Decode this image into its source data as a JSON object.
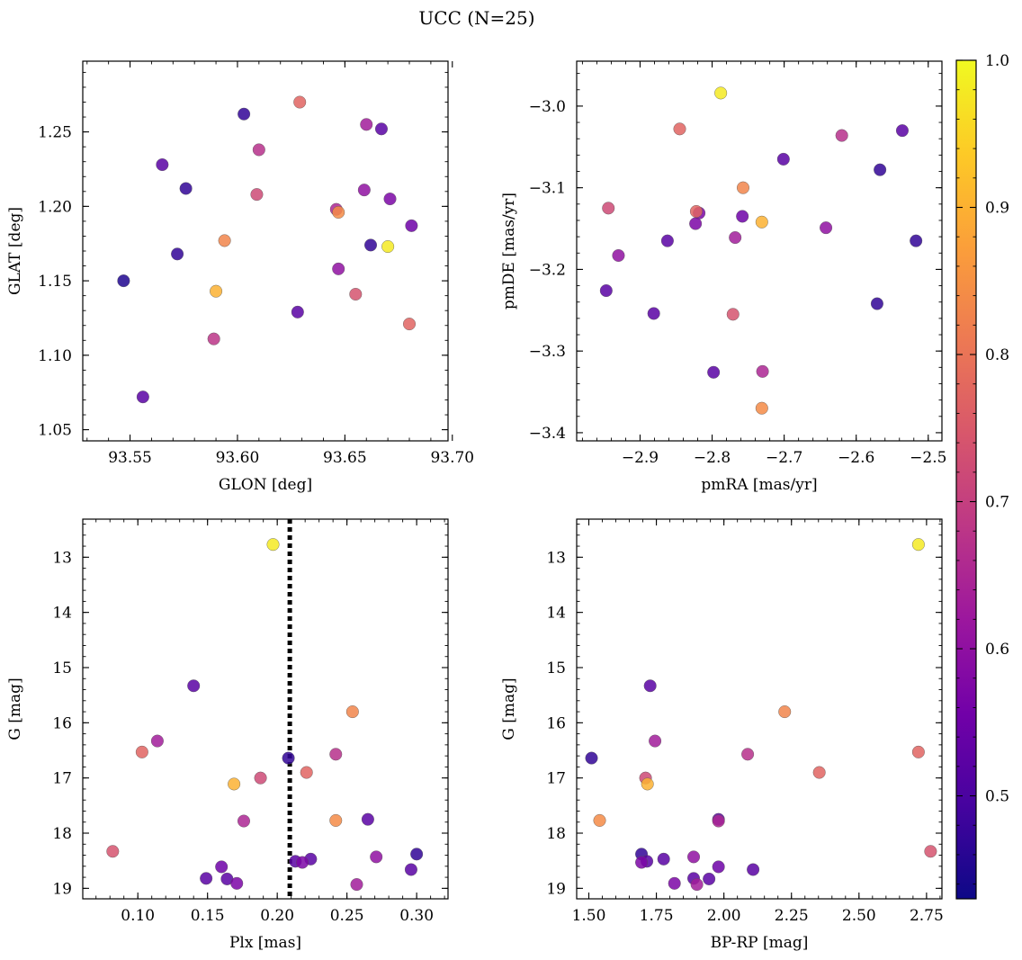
{
  "figure_title": "UCC (N=25)",
  "colorbar": {
    "min": 0.43,
    "max": 1.0,
    "ticks": [
      0.5,
      0.6,
      0.7,
      0.8,
      0.9,
      1.0
    ],
    "tick_labels": [
      "0.5",
      "0.6",
      "0.7",
      "0.8",
      "0.9",
      "1.0"
    ],
    "colormap": "plasma",
    "colormap_stops": [
      "#0d0887",
      "#46039f",
      "#7201a8",
      "#9c179e",
      "#bd3786",
      "#d8576b",
      "#ed7953",
      "#fb9f3a",
      "#fdca26",
      "#f0f921"
    ]
  },
  "chart_data": [
    {
      "type": "scatter",
      "id": "sky",
      "xlabel": "GLON [deg]",
      "ylabel": "GLAT [deg]",
      "xlim": [
        93.528,
        93.698
      ],
      "ylim": [
        1.0425,
        1.2975
      ],
      "xticks": [
        93.55,
        93.6,
        93.65,
        93.7
      ],
      "xtick_labels": [
        "93.55",
        "93.60",
        "93.65",
        "93.70"
      ],
      "yticks": [
        1.05,
        1.1,
        1.15,
        1.2,
        1.25
      ],
      "ytick_labels": [
        "1.05",
        "1.10",
        "1.15",
        "1.20",
        "1.25"
      ],
      "points": [
        {
          "x": 93.603,
          "y": 1.262,
          "c": 0.47
        },
        {
          "x": 93.629,
          "y": 1.27,
          "c": 0.77
        },
        {
          "x": 93.66,
          "y": 1.255,
          "c": 0.63
        },
        {
          "x": 93.667,
          "y": 1.252,
          "c": 0.52
        },
        {
          "x": 93.565,
          "y": 1.228,
          "c": 0.52
        },
        {
          "x": 93.61,
          "y": 1.238,
          "c": 0.67
        },
        {
          "x": 93.576,
          "y": 1.212,
          "c": 0.47
        },
        {
          "x": 93.609,
          "y": 1.208,
          "c": 0.72
        },
        {
          "x": 93.659,
          "y": 1.211,
          "c": 0.6
        },
        {
          "x": 93.671,
          "y": 1.205,
          "c": 0.57
        },
        {
          "x": 93.646,
          "y": 1.198,
          "c": 0.65
        },
        {
          "x": 93.647,
          "y": 1.196,
          "c": 0.84
        },
        {
          "x": 93.681,
          "y": 1.187,
          "c": 0.55
        },
        {
          "x": 93.594,
          "y": 1.177,
          "c": 0.83
        },
        {
          "x": 93.572,
          "y": 1.168,
          "c": 0.47
        },
        {
          "x": 93.662,
          "y": 1.174,
          "c": 0.47
        },
        {
          "x": 93.67,
          "y": 1.173,
          "c": 0.98
        },
        {
          "x": 93.547,
          "y": 1.15,
          "c": 0.45
        },
        {
          "x": 93.647,
          "y": 1.158,
          "c": 0.6
        },
        {
          "x": 93.59,
          "y": 1.143,
          "c": 0.9
        },
        {
          "x": 93.655,
          "y": 1.141,
          "c": 0.74
        },
        {
          "x": 93.628,
          "y": 1.129,
          "c": 0.52
        },
        {
          "x": 93.68,
          "y": 1.121,
          "c": 0.77
        },
        {
          "x": 93.589,
          "y": 1.111,
          "c": 0.68
        },
        {
          "x": 93.556,
          "y": 1.072,
          "c": 0.52
        }
      ]
    },
    {
      "type": "scatter",
      "id": "pm",
      "xlabel": "pmRA [mas/yr]",
      "ylabel": "pmDE [mas/yr]",
      "xlim": [
        -2.988,
        -2.481
      ],
      "ylim": [
        -3.41,
        -2.945
      ],
      "xticks": [
        -2.9,
        -2.8,
        -2.7,
        -2.6,
        -2.5
      ],
      "xtick_labels": [
        "−2.9",
        "−2.8",
        "−2.7",
        "−2.6",
        "−2.5"
      ],
      "yticks": [
        -3.0,
        -3.1,
        -3.2,
        -3.3,
        -3.4
      ],
      "ytick_labels": [
        "−3.0",
        "−3.1",
        "−3.2",
        "−3.3",
        "−3.4"
      ],
      "points": [
        {
          "x": -2.788,
          "y": -2.984,
          "c": 0.98
        },
        {
          "x": -2.845,
          "y": -3.028,
          "c": 0.77
        },
        {
          "x": -2.62,
          "y": -3.036,
          "c": 0.67
        },
        {
          "x": -2.536,
          "y": -3.03,
          "c": 0.52
        },
        {
          "x": -2.701,
          "y": -3.065,
          "c": 0.52
        },
        {
          "x": -2.567,
          "y": -3.078,
          "c": 0.47
        },
        {
          "x": -2.757,
          "y": -3.1,
          "c": 0.83
        },
        {
          "x": -2.944,
          "y": -3.125,
          "c": 0.72
        },
        {
          "x": -2.822,
          "y": -3.129,
          "c": 0.77
        },
        {
          "x": -2.818,
          "y": -3.131,
          "c": 0.57
        },
        {
          "x": -2.758,
          "y": -3.135,
          "c": 0.55
        },
        {
          "x": -2.731,
          "y": -3.142,
          "c": 0.9
        },
        {
          "x": -2.823,
          "y": -3.144,
          "c": 0.57
        },
        {
          "x": -2.642,
          "y": -3.149,
          "c": 0.6
        },
        {
          "x": -2.768,
          "y": -3.161,
          "c": 0.63
        },
        {
          "x": -2.862,
          "y": -3.165,
          "c": 0.52
        },
        {
          "x": -2.517,
          "y": -3.165,
          "c": 0.47
        },
        {
          "x": -2.93,
          "y": -3.183,
          "c": 0.6
        },
        {
          "x": -2.947,
          "y": -3.226,
          "c": 0.52
        },
        {
          "x": -2.571,
          "y": -3.242,
          "c": 0.47
        },
        {
          "x": -2.881,
          "y": -3.254,
          "c": 0.52
        },
        {
          "x": -2.771,
          "y": -3.255,
          "c": 0.74
        },
        {
          "x": -2.798,
          "y": -3.326,
          "c": 0.52
        },
        {
          "x": -2.73,
          "y": -3.325,
          "c": 0.65
        },
        {
          "x": -2.731,
          "y": -3.37,
          "c": 0.84
        }
      ]
    },
    {
      "type": "scatter",
      "id": "plx",
      "xlabel": "Plx [mas]",
      "ylabel": "G [mag]",
      "xlim": [
        0.0605,
        0.3225
      ],
      "ylim": [
        19.19,
        12.31
      ],
      "xticks": [
        0.1,
        0.15,
        0.2,
        0.25,
        0.3
      ],
      "xtick_labels": [
        "0.10",
        "0.15",
        "0.20",
        "0.25",
        "0.30"
      ],
      "yticks": [
        13,
        14,
        15,
        16,
        17,
        18,
        19
      ],
      "ytick_labels": [
        "13",
        "14",
        "15",
        "16",
        "17",
        "18",
        "19"
      ],
      "vline": 0.209,
      "points": [
        {
          "x": 0.197,
          "y": 12.77,
          "c": 0.98
        },
        {
          "x": 0.14,
          "y": 15.33,
          "c": 0.52
        },
        {
          "x": 0.254,
          "y": 15.8,
          "c": 0.83
        },
        {
          "x": 0.114,
          "y": 16.33,
          "c": 0.63
        },
        {
          "x": 0.103,
          "y": 16.53,
          "c": 0.77
        },
        {
          "x": 0.242,
          "y": 16.57,
          "c": 0.67
        },
        {
          "x": 0.208,
          "y": 16.64,
          "c": 0.47
        },
        {
          "x": 0.221,
          "y": 16.9,
          "c": 0.77
        },
        {
          "x": 0.188,
          "y": 17.0,
          "c": 0.72
        },
        {
          "x": 0.169,
          "y": 17.11,
          "c": 0.9
        },
        {
          "x": 0.176,
          "y": 17.78,
          "c": 0.65
        },
        {
          "x": 0.242,
          "y": 17.77,
          "c": 0.84
        },
        {
          "x": 0.265,
          "y": 17.75,
          "c": 0.52
        },
        {
          "x": 0.082,
          "y": 18.33,
          "c": 0.74
        },
        {
          "x": 0.3,
          "y": 18.38,
          "c": 0.47
        },
        {
          "x": 0.271,
          "y": 18.43,
          "c": 0.6
        },
        {
          "x": 0.224,
          "y": 18.47,
          "c": 0.52
        },
        {
          "x": 0.213,
          "y": 18.51,
          "c": 0.52
        },
        {
          "x": 0.218,
          "y": 18.53,
          "c": 0.57
        },
        {
          "x": 0.16,
          "y": 18.61,
          "c": 0.55
        },
        {
          "x": 0.296,
          "y": 18.66,
          "c": 0.52
        },
        {
          "x": 0.149,
          "y": 18.82,
          "c": 0.52
        },
        {
          "x": 0.164,
          "y": 18.83,
          "c": 0.52
        },
        {
          "x": 0.171,
          "y": 18.91,
          "c": 0.57
        },
        {
          "x": 0.257,
          "y": 18.93,
          "c": 0.63
        }
      ]
    },
    {
      "type": "scatter",
      "id": "cmd",
      "xlabel": "BP-RP [mag]",
      "ylabel": "G [mag]",
      "xlim": [
        1.455,
        2.807
      ],
      "ylim": [
        19.19,
        12.31
      ],
      "xticks": [
        1.5,
        1.75,
        2.0,
        2.25,
        2.5,
        2.75
      ],
      "xtick_labels": [
        "1.50",
        "1.75",
        "2.00",
        "2.25",
        "2.50",
        "2.75"
      ],
      "yticks": [
        13,
        14,
        15,
        16,
        17,
        18,
        19
      ],
      "ytick_labels": [
        "13",
        "14",
        "15",
        "16",
        "17",
        "18",
        "19"
      ],
      "points": [
        {
          "x": 2.72,
          "y": 12.77,
          "c": 0.98
        },
        {
          "x": 1.727,
          "y": 15.33,
          "c": 0.52
        },
        {
          "x": 2.225,
          "y": 15.8,
          "c": 0.83
        },
        {
          "x": 1.745,
          "y": 16.33,
          "c": 0.63
        },
        {
          "x": 2.72,
          "y": 16.53,
          "c": 0.77
        },
        {
          "x": 2.088,
          "y": 16.57,
          "c": 0.67
        },
        {
          "x": 1.51,
          "y": 16.64,
          "c": 0.47
        },
        {
          "x": 2.353,
          "y": 16.9,
          "c": 0.77
        },
        {
          "x": 1.71,
          "y": 17.0,
          "c": 0.72
        },
        {
          "x": 1.717,
          "y": 17.11,
          "c": 0.9
        },
        {
          "x": 1.98,
          "y": 17.78,
          "c": 0.65
        },
        {
          "x": 1.54,
          "y": 17.77,
          "c": 0.84
        },
        {
          "x": 1.98,
          "y": 17.75,
          "c": 0.52
        },
        {
          "x": 2.765,
          "y": 18.33,
          "c": 0.74
        },
        {
          "x": 1.695,
          "y": 18.38,
          "c": 0.47
        },
        {
          "x": 1.888,
          "y": 18.43,
          "c": 0.6
        },
        {
          "x": 1.777,
          "y": 18.47,
          "c": 0.52
        },
        {
          "x": 1.715,
          "y": 18.51,
          "c": 0.52
        },
        {
          "x": 1.695,
          "y": 18.53,
          "c": 0.57
        },
        {
          "x": 1.98,
          "y": 18.61,
          "c": 0.55
        },
        {
          "x": 2.108,
          "y": 18.66,
          "c": 0.52
        },
        {
          "x": 1.888,
          "y": 18.82,
          "c": 0.52
        },
        {
          "x": 1.945,
          "y": 18.83,
          "c": 0.52
        },
        {
          "x": 1.817,
          "y": 18.91,
          "c": 0.57
        },
        {
          "x": 1.9,
          "y": 18.93,
          "c": 0.63
        }
      ]
    }
  ]
}
